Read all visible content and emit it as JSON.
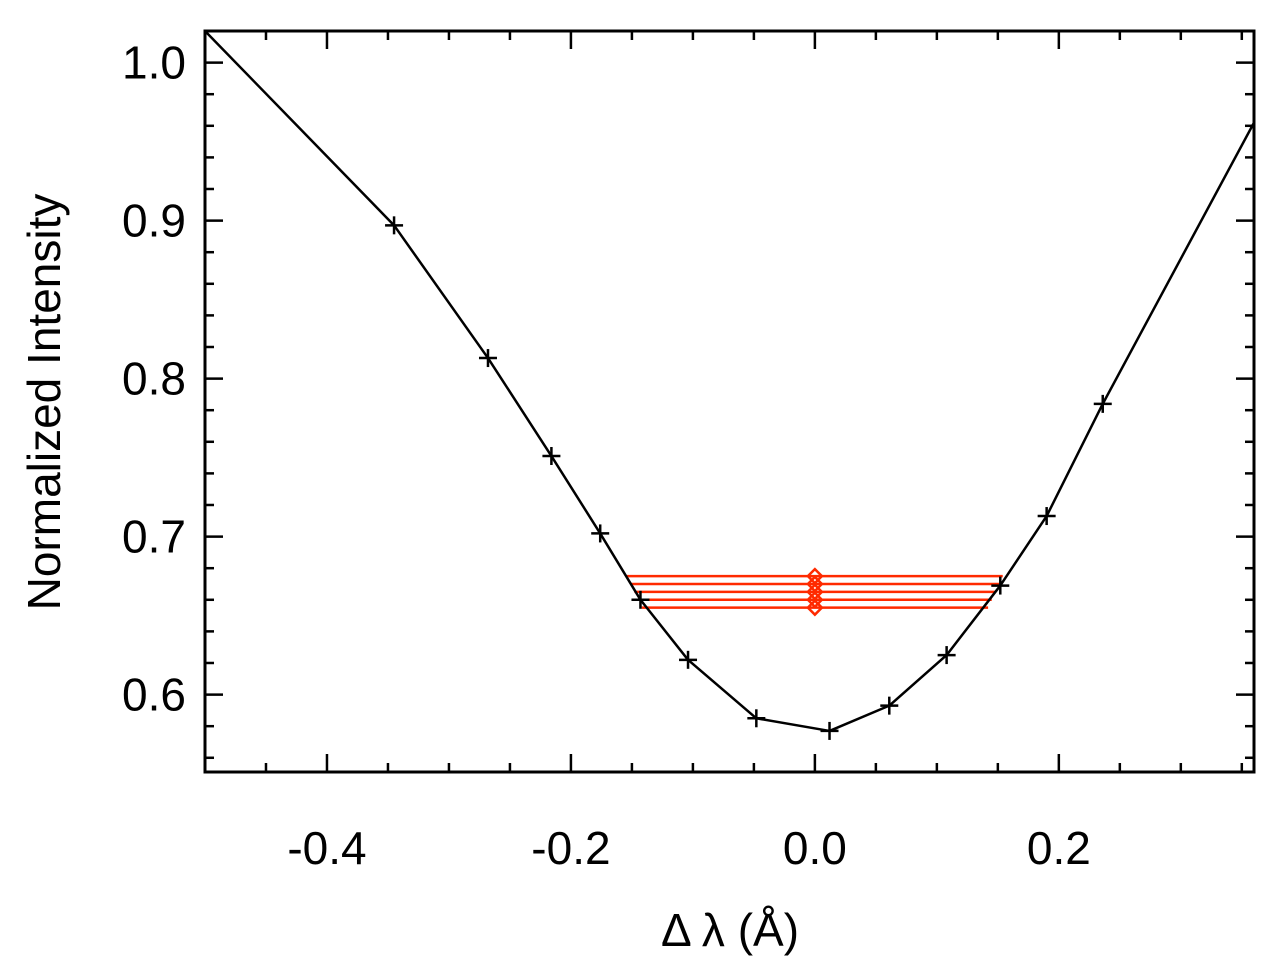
{
  "chart_data": {
    "type": "line",
    "title": "",
    "xlabel": "Δ λ (Å)",
    "ylabel": "Normalized Intensity",
    "xlim": [
      -0.5,
      0.36
    ],
    "ylim": [
      0.551,
      1.02
    ],
    "x_ticks": [
      -0.4,
      -0.2,
      0.0,
      0.2
    ],
    "x_tick_labels": [
      "-0.4",
      "-0.2",
      "0.0",
      "0.2"
    ],
    "y_ticks": [
      0.6,
      0.7,
      0.8,
      0.9,
      1.0
    ],
    "y_tick_labels": [
      "0.6",
      "0.7",
      "0.8",
      "0.9",
      "1.0"
    ],
    "grid": false,
    "series": [
      {
        "color": "#000000",
        "marker": "plus",
        "x": [
          -0.5,
          -0.345,
          -0.268,
          -0.216,
          -0.176,
          -0.143,
          -0.104,
          -0.048,
          0.012,
          0.061,
          0.108,
          0.152,
          0.19,
          0.236,
          0.36
        ],
        "y": [
          1.02,
          0.897,
          0.813,
          0.751,
          0.702,
          0.66,
          0.622,
          0.585,
          0.577,
          0.593,
          0.625,
          0.669,
          0.713,
          0.784,
          0.962
        ],
        "marker_mask": [
          false,
          true,
          true,
          true,
          true,
          true,
          true,
          true,
          true,
          true,
          true,
          true,
          true,
          true,
          false
        ]
      }
    ],
    "bisector": {
      "color": "#ff2a00",
      "marker": "diamond",
      "center_x": 0.0,
      "levels": [
        {
          "y": 0.675,
          "x_left": -0.154,
          "x_right": 0.154
        },
        {
          "y": 0.67,
          "x_left": -0.151,
          "x_right": 0.151
        },
        {
          "y": 0.665,
          "x_left": -0.148,
          "x_right": 0.148
        },
        {
          "y": 0.66,
          "x_left": -0.145,
          "x_right": 0.145
        },
        {
          "y": 0.655,
          "x_left": -0.142,
          "x_right": 0.142
        }
      ]
    }
  }
}
